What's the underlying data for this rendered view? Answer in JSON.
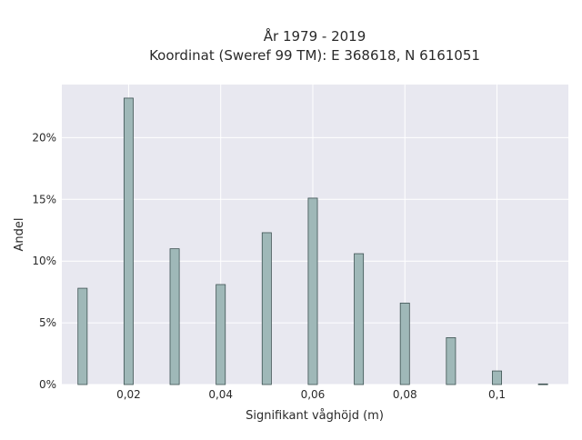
{
  "chart_data": {
    "type": "bar",
    "title_line1": "År 1979 - 2019",
    "title_line2": "Koordinat (Sweref 99 TM): E 368618, N 6161051",
    "xlabel": "Signifikant våghöjd (m)",
    "ylabel": "Andel",
    "x_ticks": [
      {
        "value": 0.02,
        "label": "0,02"
      },
      {
        "value": 0.04,
        "label": "0,04"
      },
      {
        "value": 0.06,
        "label": "0,06"
      },
      {
        "value": 0.08,
        "label": "0,08"
      },
      {
        "value": 0.1,
        "label": "0,1"
      }
    ],
    "y_ticks": [
      {
        "value": 0,
        "label": "0%"
      },
      {
        "value": 5,
        "label": "5%"
      },
      {
        "value": 10,
        "label": "10%"
      },
      {
        "value": 15,
        "label": "15%"
      },
      {
        "value": 20,
        "label": "20%"
      }
    ],
    "xlim": [
      0.0055,
      0.1155
    ],
    "ylim": [
      0,
      24.3
    ],
    "bar_width": 0.002,
    "x": [
      0.01,
      0.02,
      0.03,
      0.04,
      0.05,
      0.06,
      0.07,
      0.08,
      0.09,
      0.1,
      0.11
    ],
    "values": [
      7.8,
      23.2,
      11.0,
      8.1,
      12.3,
      15.1,
      10.6,
      6.6,
      3.8,
      1.1,
      0.05
    ],
    "grid": true,
    "colors": {
      "bar_fill": "#9fb8b8",
      "bar_stroke": "#3d5252",
      "plot_background": "#e8e8f0",
      "grid": "#ffffff"
    }
  }
}
